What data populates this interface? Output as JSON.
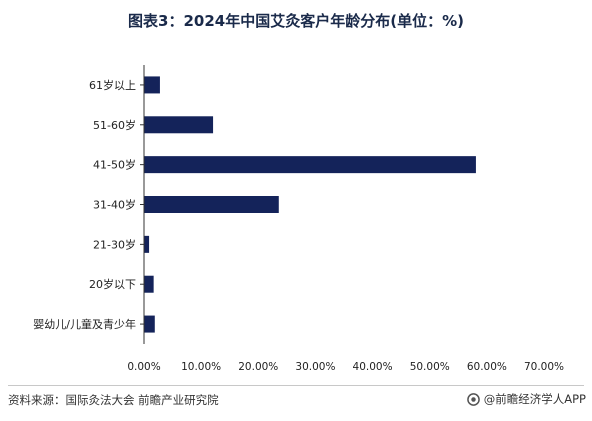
{
  "title": "图表3：2024年中国艾灸客户年龄分布(单位：%)",
  "source": "资料来源：国际灸法大会 前瞻产业研究院",
  "brand": "@前瞻经济学人APP",
  "colors": {
    "bar": "#14235a",
    "axis": "#333333",
    "text": "#222222"
  },
  "chart_data": {
    "type": "bar",
    "orientation": "horizontal",
    "categories": [
      "61岁以上",
      "51-60岁",
      "41-50岁",
      "31-40岁",
      "21-30岁",
      "20岁以下",
      "婴幼儿/儿童及青少年"
    ],
    "values": [
      2.7,
      12.0,
      58.0,
      23.5,
      0.8,
      1.6,
      1.8
    ],
    "x_ticks": [
      "0.00%",
      "10.00%",
      "20.00%",
      "30.00%",
      "40.00%",
      "50.00%",
      "60.00%",
      "70.00%"
    ],
    "xlim": [
      0,
      70
    ],
    "title": "图表3：2024年中国艾灸客户年龄分布(单位：%)",
    "grid": false,
    "legend": "none"
  }
}
